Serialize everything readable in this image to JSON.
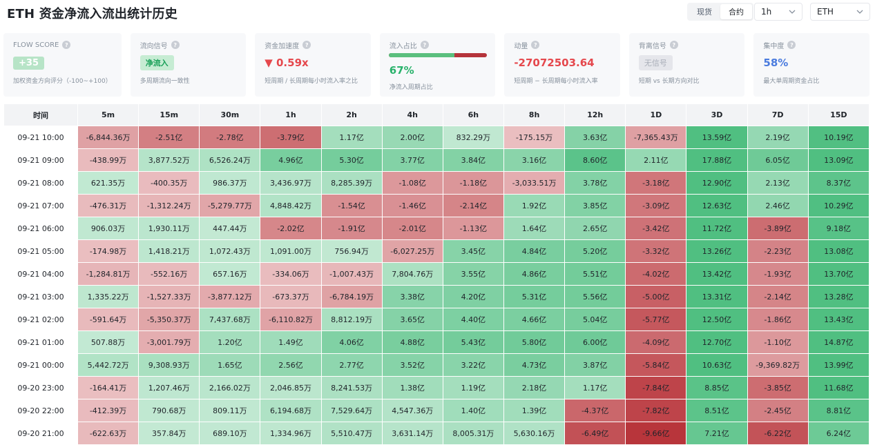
{
  "header": {
    "title": "ETH 资金净流入流出统计历史",
    "segment": [
      "现货",
      "合约"
    ],
    "segment_active": 1,
    "interval_value": "1h",
    "asset_value": "ETH"
  },
  "metrics": {
    "flow_score": {
      "label": "FLOW SCORE",
      "value": "+35",
      "desc": "加权资金方向评分（-100~+100）"
    },
    "flow_signal": {
      "label": "流向信号",
      "value": "净流入",
      "desc": "多周期流向一致性"
    },
    "acceleration": {
      "label": "资金加速度",
      "value": "▼ 0.59x",
      "desc": "短周期 / 长周期每小时流入率之比"
    },
    "inflow_ratio": {
      "label": "流入占比",
      "value": "67%",
      "fraction": 0.67,
      "desc": "净流入周期占比"
    },
    "momentum": {
      "label": "动量",
      "value": "-27072503.64",
      "desc": "短周期 − 长周期每小时流入率"
    },
    "divergence": {
      "label": "背离信号",
      "value": "无信号",
      "desc": "短期 vs 长期方向对比"
    },
    "concentration": {
      "label": "集中度",
      "value": "58%",
      "desc": "最大单周期资金占比"
    }
  },
  "table": {
    "headers": [
      "时间",
      "5m",
      "15m",
      "30m",
      "1h",
      "2h",
      "4h",
      "6h",
      "8h",
      "12h",
      "1D",
      "3D",
      "7D",
      "15D"
    ],
    "rows": [
      {
        "time": "09-21 10:00",
        "cells": [
          "-6,844.36万",
          "-2.51亿",
          "-2.78亿",
          "-3.79亿",
          "1.17亿",
          "2.00亿",
          "832.29万",
          "-175.15万",
          "3.63亿",
          "-7,365.43万",
          "13.59亿",
          "2.19亿",
          "10.19亿"
        ]
      },
      {
        "time": "09-21 09:00",
        "cells": [
          "-438.99万",
          "3,877.52万",
          "6,526.24万",
          "4.96亿",
          "5.30亿",
          "3.77亿",
          "3.84亿",
          "3.16亿",
          "8.60亿",
          "2.11亿",
          "17.88亿",
          "6.05亿",
          "13.09亿"
        ]
      },
      {
        "time": "09-21 08:00",
        "cells": [
          "621.35万",
          "-400.35万",
          "986.37万",
          "3,436.97万",
          "8,285.39万",
          "-1.08亿",
          "-1.18亿",
          "-3,033.51万",
          "3.78亿",
          "-3.18亿",
          "12.90亿",
          "2.13亿",
          "8.37亿"
        ]
      },
      {
        "time": "09-21 07:00",
        "cells": [
          "-476.31万",
          "-1,312.24万",
          "-5,279.77万",
          "4,848.42万",
          "-1.54亿",
          "-1.46亿",
          "-2.14亿",
          "1.92亿",
          "3.85亿",
          "-3.09亿",
          "12.63亿",
          "2.46亿",
          "10.29亿"
        ]
      },
      {
        "time": "09-21 06:00",
        "cells": [
          "906.03万",
          "1,930.11万",
          "447.44万",
          "-2.02亿",
          "-1.91亿",
          "-2.01亿",
          "-1.13亿",
          "1.64亿",
          "2.65亿",
          "-3.42亿",
          "11.72亿",
          "-3.89亿",
          "9.18亿"
        ]
      },
      {
        "time": "09-21 05:00",
        "cells": [
          "-174.98万",
          "1,418.21万",
          "1,072.43万",
          "1,091.00万",
          "756.94万",
          "-6,027.25万",
          "3.45亿",
          "4.84亿",
          "5.20亿",
          "-3.32亿",
          "13.26亿",
          "-2.23亿",
          "13.08亿"
        ]
      },
      {
        "time": "09-21 04:00",
        "cells": [
          "-1,284.81万",
          "-552.16万",
          "657.16万",
          "-334.06万",
          "-1,007.43万",
          "7,804.76万",
          "3.55亿",
          "4.86亿",
          "5.51亿",
          "-4.02亿",
          "13.42亿",
          "-1.93亿",
          "13.70亿"
        ]
      },
      {
        "time": "09-21 03:00",
        "cells": [
          "1,335.22万",
          "-1,527.33万",
          "-3,877.12万",
          "-673.37万",
          "-6,784.19万",
          "3.38亿",
          "4.20亿",
          "5.31亿",
          "5.56亿",
          "-5.00亿",
          "13.31亿",
          "-2.14亿",
          "13.28亿"
        ]
      },
      {
        "time": "09-21 02:00",
        "cells": [
          "-591.64万",
          "-5,350.37万",
          "7,437.68万",
          "-6,110.82万",
          "8,812.19万",
          "3.65亿",
          "4.40亿",
          "4.66亿",
          "5.04亿",
          "-5.77亿",
          "12.50亿",
          "-1.86亿",
          "13.43亿"
        ]
      },
      {
        "time": "09-21 01:00",
        "cells": [
          "507.88万",
          "-3,001.79万",
          "1.20亿",
          "1.49亿",
          "4.06亿",
          "4.88亿",
          "5.43亿",
          "5.80亿",
          "6.00亿",
          "-4.09亿",
          "12.70亿",
          "-1.10亿",
          "14.87亿"
        ]
      },
      {
        "time": "09-21 00:00",
        "cells": [
          "5,442.72万",
          "9,308.93万",
          "1.65亿",
          "2.56亿",
          "2.77亿",
          "3.52亿",
          "3.22亿",
          "4.73亿",
          "3.87亿",
          "-5.84亿",
          "10.63亿",
          "-9,369.82万",
          "13.99亿"
        ]
      },
      {
        "time": "09-20 23:00",
        "cells": [
          "-164.41万",
          "1,207.46万",
          "2,166.02万",
          "2,046.85万",
          "8,241.53万",
          "1.38亿",
          "1.19亿",
          "2.18亿",
          "1.17亿",
          "-7.84亿",
          "8.85亿",
          "-3.85亿",
          "11.68亿"
        ]
      },
      {
        "time": "09-20 22:00",
        "cells": [
          "-412.39万",
          "790.68万",
          "809.11万",
          "6,194.68万",
          "7,529.64万",
          "4,547.36万",
          "1.40亿",
          "1.39亿",
          "-4.37亿",
          "-7.82亿",
          "8.51亿",
          "-2.45亿",
          "8.81亿"
        ]
      },
      {
        "time": "09-20 21:00",
        "cells": [
          "-622.63万",
          "357.84万",
          "689.10万",
          "1,334.96万",
          "5,510.47万",
          "3,631.14万",
          "8,005.31万",
          "5,630.16万",
          "-6.49亿",
          "-9.66亿",
          "7.21亿",
          "-6.22亿",
          "6.24亿"
        ]
      }
    ]
  },
  "colors": {
    "positive": "#2fb36a",
    "negative": "#b8343a",
    "accent_red": "#e5484d",
    "accent_green": "#29b26b",
    "accent_blue": "#4a7bde"
  },
  "icons": {
    "help": "help-circle-icon",
    "chevron": "chevron-down-icon"
  }
}
